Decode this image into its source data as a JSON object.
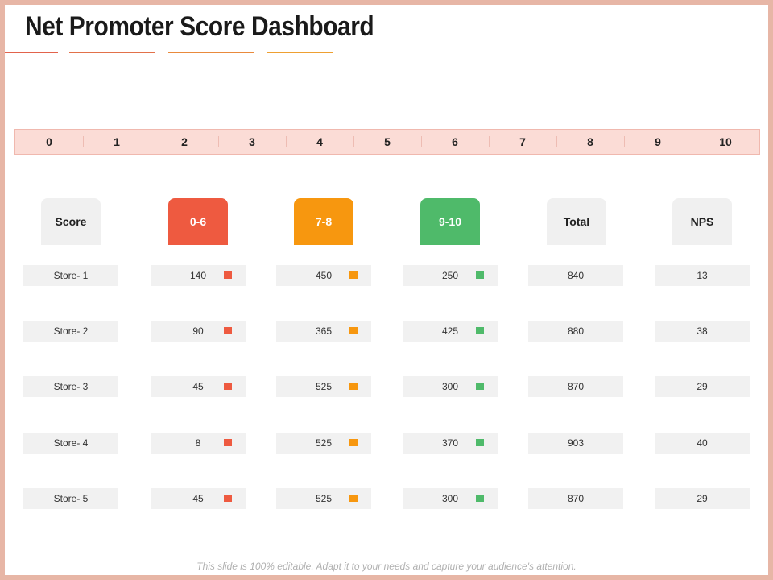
{
  "title": "Net Promoter Score Dashboard",
  "colors": {
    "detractor": "#ee5a40",
    "passive": "#f7970f",
    "promoter": "#4fba6a",
    "neutral": "#f0f0f0",
    "scale_band": "#fbdcd6",
    "title_underlines": [
      "#e2634c",
      "#e2714a",
      "#e98a3c",
      "#eea032"
    ]
  },
  "scale": [
    "0",
    "1",
    "2",
    "3",
    "4",
    "5",
    "6",
    "7",
    "8",
    "9",
    "10"
  ],
  "columns": [
    {
      "label": "Score",
      "style": "gray"
    },
    {
      "label": "0-6",
      "style": "red"
    },
    {
      "label": "7-8",
      "style": "orange"
    },
    {
      "label": "9-10",
      "style": "green"
    },
    {
      "label": "Total",
      "style": "gray"
    },
    {
      "label": "NPS",
      "style": "gray"
    }
  ],
  "rows": [
    {
      "store": "Store- 1",
      "detractors": "140",
      "passives": "450",
      "promoters": "250",
      "total": "840",
      "nps": "13"
    },
    {
      "store": "Store- 2",
      "detractors": "90",
      "passives": "365",
      "promoters": "425",
      "total": "880",
      "nps": "38"
    },
    {
      "store": "Store- 3",
      "detractors": "45",
      "passives": "525",
      "promoters": "300",
      "total": "870",
      "nps": "29"
    },
    {
      "store": "Store- 4",
      "detractors": "8",
      "passives": "525",
      "promoters": "370",
      "total": "903",
      "nps": "40"
    },
    {
      "store": "Store- 5",
      "detractors": "45",
      "passives": "525",
      "promoters": "300",
      "total": "870",
      "nps": "29"
    }
  ],
  "footer": "This slide is 100% editable. Adapt it to your needs and capture your audience's attention."
}
